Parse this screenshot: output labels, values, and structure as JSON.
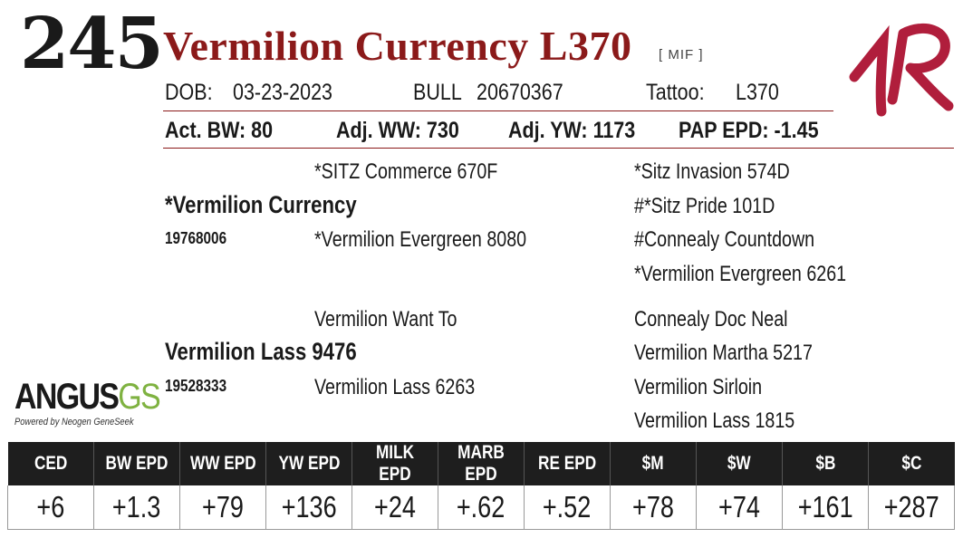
{
  "lot": "245",
  "animal": {
    "name": "Vermilion Currency L370",
    "tag": "[ MIF ]",
    "dob_label": "DOB:",
    "dob": "03-23-2023",
    "sex": "BULL",
    "registration": "20670367",
    "tattoo_label": "Tattoo:",
    "tattoo": "L370"
  },
  "performance": {
    "act_bw": "Act. BW: 80",
    "adj_ww": "Adj. WW: 730",
    "adj_yw": "Adj. YW: 1173",
    "pap_epd": "PAP EPD: -1.45"
  },
  "pedigree": {
    "sire": {
      "name": "*Vermilion Currency",
      "reg": "19768006"
    },
    "sire_sire": "*SITZ Commerce 670F",
    "sire_dam": "*Vermilion Evergreen 8080",
    "sss": "*Sitz Invasion 574D",
    "ssd": "#*Sitz Pride 101D",
    "sds": "#Connealy Countdown",
    "sdd": "*Vermilion Evergreen 6261",
    "dam": {
      "name": "Vermilion Lass 9476",
      "reg": "19528333"
    },
    "dam_sire": "Vermilion Want To",
    "dam_dam": "Vermilion Lass 6263",
    "dss": "Connealy Doc Neal",
    "dsd": "Vermilion Martha 5217",
    "dds": "Vermilion Sirloin",
    "ddd": "Vermilion Lass 1815"
  },
  "logos": {
    "angus_word": "ANGUS",
    "angus_gs": "GS",
    "angus_sub": "Powered by Neogen GeneSeek",
    "brand_mark": "1R"
  },
  "epd": {
    "headers": [
      "CED",
      "BW EPD",
      "WW EPD",
      "YW EPD",
      "MILK EPD",
      "MARB EPD",
      "RE EPD",
      "$M",
      "$W",
      "$B",
      "$C"
    ],
    "values": [
      "+6",
      "+1.3",
      "+79",
      "+136",
      "+24",
      "+.62",
      "+.52",
      "+78",
      "+74",
      "+161",
      "+287"
    ]
  },
  "colors": {
    "accent": "#8b1a1a",
    "header_bg": "#1e1e1e",
    "brand": "#b01e3c",
    "gs_green": "#7fb241"
  }
}
